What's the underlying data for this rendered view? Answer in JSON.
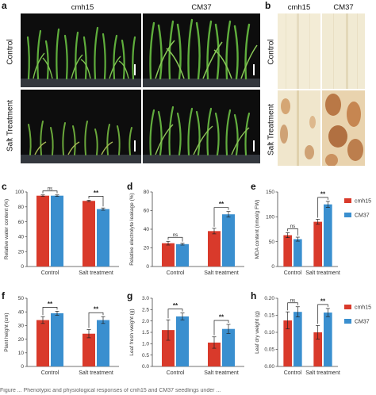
{
  "panel_letters": {
    "a": "a",
    "b": "b",
    "c": "c",
    "d": "d",
    "e": "e",
    "f": "f",
    "g": "g",
    "h": "h"
  },
  "photos": {
    "col_labels": [
      "cmh15",
      "CM37"
    ],
    "row_labels": [
      "Control",
      "Salt Treatment"
    ]
  },
  "leaves": {
    "col_labels": [
      "cmh15",
      "CM37"
    ],
    "row_labels": [
      "Control",
      "Salt Treatment"
    ]
  },
  "legend": [
    {
      "name": "cmh15",
      "color": "#d93a2b"
    },
    {
      "name": "CM37",
      "color": "#3a8fcf"
    }
  ],
  "caption": "Figure ... Phenotypic and physiological responses of cmh15 and CM37 seedlings under ...",
  "chart_data": [
    {
      "id": "c",
      "type": "bar",
      "categories": [
        "Control",
        "Salt treatment"
      ],
      "series": [
        {
          "name": "cmh15",
          "values": [
            95,
            88
          ],
          "errors": [
            1,
            1
          ]
        },
        {
          "name": "CM37",
          "values": [
            95,
            77
          ],
          "errors": [
            1,
            1.5
          ]
        }
      ],
      "ylabel": "Relative water content (%)",
      "ylim": [
        0,
        100
      ],
      "yticks": [
        0,
        20,
        40,
        60,
        80,
        100
      ],
      "sig": [
        "ns",
        "**"
      ]
    },
    {
      "id": "d",
      "type": "bar",
      "categories": [
        "Control",
        "Salt treatment"
      ],
      "series": [
        {
          "name": "cmh15",
          "values": [
            25,
            38
          ],
          "errors": [
            2,
            3
          ]
        },
        {
          "name": "CM37",
          "values": [
            24,
            56
          ],
          "errors": [
            1,
            3
          ]
        }
      ],
      "ylabel": "Relative electrolyte leakage (%)",
      "ylim": [
        0,
        80
      ],
      "yticks": [
        0,
        20,
        40,
        60,
        80
      ],
      "sig": [
        "ns",
        "**"
      ]
    },
    {
      "id": "e",
      "type": "bar",
      "categories": [
        "Control",
        "Salt treatment"
      ],
      "series": [
        {
          "name": "cmh15",
          "values": [
            63,
            90
          ],
          "errors": [
            5,
            5
          ]
        },
        {
          "name": "CM37",
          "values": [
            55,
            125
          ],
          "errors": [
            4,
            6
          ]
        }
      ],
      "ylabel": "MDA content (nmol/g FW)",
      "ylim": [
        0,
        150
      ],
      "yticks": [
        0,
        50,
        100,
        150
      ],
      "sig": [
        "ns",
        "**"
      ]
    },
    {
      "id": "f",
      "type": "bar",
      "categories": [
        "Control",
        "Salt treatment"
      ],
      "series": [
        {
          "name": "cmh15",
          "values": [
            34,
            24
          ],
          "errors": [
            2.5,
            3
          ]
        },
        {
          "name": "CM37",
          "values": [
            39,
            34
          ],
          "errors": [
            1.5,
            2.5
          ]
        }
      ],
      "ylabel": "Plant height (cm)",
      "ylim": [
        0,
        50
      ],
      "yticks": [
        0,
        10,
        20,
        30,
        40,
        50
      ],
      "sig": [
        "**",
        "**"
      ]
    },
    {
      "id": "g",
      "type": "bar",
      "categories": [
        "Control",
        "Salt treatment"
      ],
      "series": [
        {
          "name": "cmh15",
          "values": [
            1.6,
            1.05
          ],
          "errors": [
            0.45,
            0.25
          ]
        },
        {
          "name": "CM37",
          "values": [
            2.2,
            1.65
          ],
          "errors": [
            0.15,
            0.2
          ]
        }
      ],
      "ylabel": "Leaf fresh weight (g)",
      "ylim": [
        0,
        3.0
      ],
      "yticks": [
        0,
        0.5,
        1.0,
        1.5,
        2.0,
        2.5,
        3.0
      ],
      "sig": [
        "**",
        "**"
      ]
    },
    {
      "id": "h",
      "type": "bar",
      "categories": [
        "Control",
        "Salt treatment"
      ],
      "series": [
        {
          "name": "cmh15",
          "values": [
            0.135,
            0.1
          ],
          "errors": [
            0.025,
            0.02
          ]
        },
        {
          "name": "CM37",
          "values": [
            0.16,
            0.158
          ],
          "errors": [
            0.015,
            0.012
          ]
        }
      ],
      "ylabel": "Leaf dry weight (g)",
      "ylim": [
        0,
        0.2
      ],
      "yticks": [
        0,
        0.05,
        0.1,
        0.15,
        0.2
      ],
      "sig": [
        "ns",
        "**"
      ]
    }
  ]
}
